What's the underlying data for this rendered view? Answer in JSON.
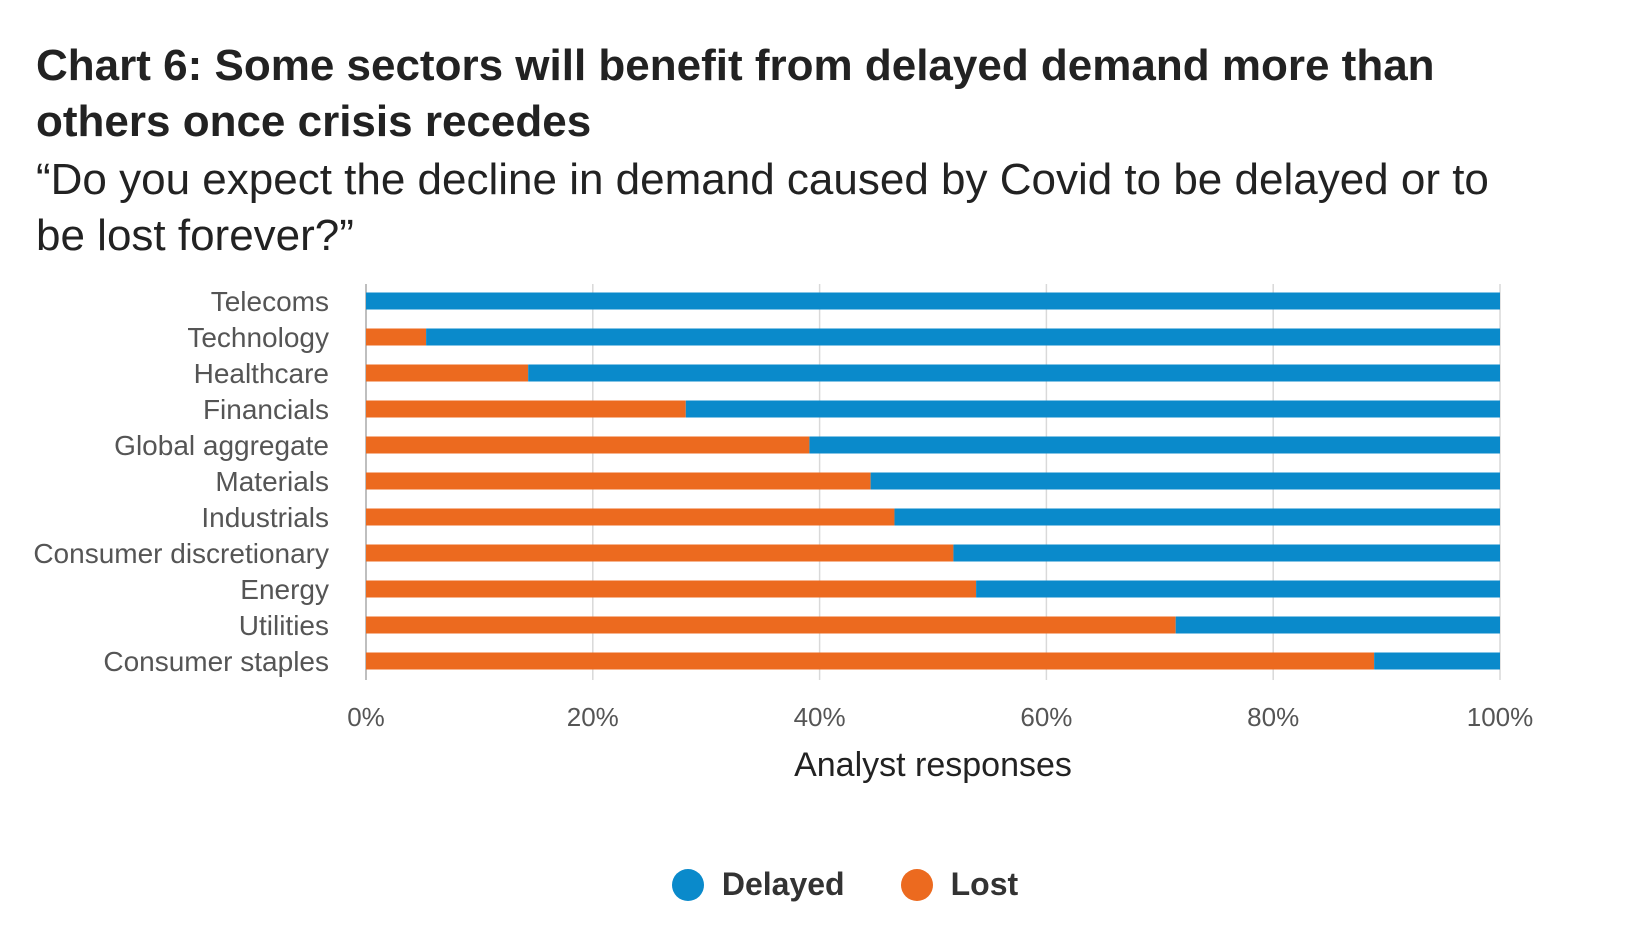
{
  "header": {
    "title": "Chart 6: Some sectors will benefit from delayed demand more than others once crisis recedes",
    "subtitle": "“Do you expect the decline in demand caused by Covid to be delayed or to be lost forever?”"
  },
  "colors": {
    "delayed": "#0a8acb",
    "lost": "#ec6a1f",
    "grid": "#d9d9d9",
    "axis": "#bfbfbf"
  },
  "legend": {
    "delayed_label": "Delayed",
    "lost_label": "Lost"
  },
  "chart_data": {
    "type": "bar",
    "orientation": "horizontal",
    "stacked": true,
    "categories": [
      "Telecoms",
      "Technology",
      "Healthcare",
      "Financials",
      "Global aggregate",
      "Materials",
      "Industrials",
      "Consumer discretionary",
      "Energy",
      "Utilities",
      "Consumer staples"
    ],
    "series": [
      {
        "name": "Lost",
        "values": [
          0,
          5.3,
          14.3,
          28.2,
          39.1,
          44.5,
          46.6,
          51.8,
          53.8,
          71.4,
          88.9
        ]
      },
      {
        "name": "Delayed",
        "values": [
          100,
          94.7,
          85.7,
          71.8,
          60.9,
          55.5,
          53.4,
          48.2,
          46.2,
          28.6,
          11.1
        ]
      }
    ],
    "xlabel": "Analyst responses",
    "ylabel": "",
    "xlim": [
      0,
      100
    ],
    "xticks": [
      "0%",
      "20%",
      "40%",
      "60%",
      "80%",
      "100%"
    ],
    "grid": true,
    "legend_position": "bottom"
  }
}
